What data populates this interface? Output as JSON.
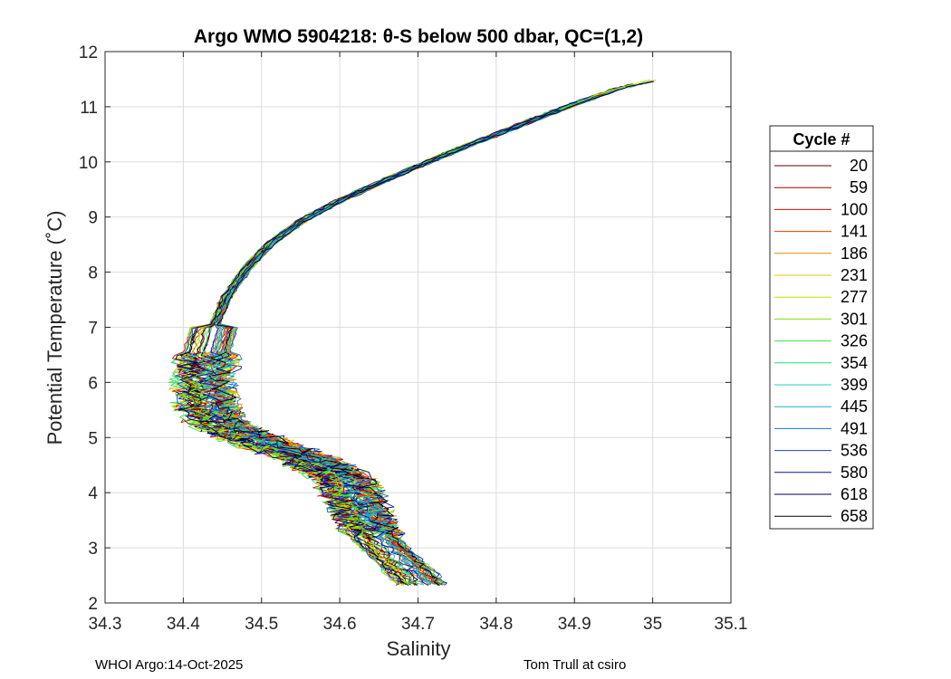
{
  "chart_data": {
    "type": "line",
    "title": "Argo WMO 5904218: θ-S below 500 dbar,  QC=(1,2)",
    "xlabel": "Salinity",
    "ylabel": "Potential Temperature (˚C)",
    "xlim": [
      34.3,
      35.1
    ],
    "ylim": [
      2,
      12
    ],
    "xticks": [
      "34.3",
      "34.4",
      "34.5",
      "34.6",
      "34.7",
      "34.8",
      "34.9",
      "35",
      "35.1"
    ],
    "yticks": [
      "2",
      "3",
      "4",
      "5",
      "6",
      "7",
      "8",
      "9",
      "10",
      "11",
      "12"
    ],
    "grid": true,
    "legend": {
      "title": "Cycle #",
      "placement": "outside-right",
      "entries": [
        {
          "label": "20",
          "color": "#5a0000"
        },
        {
          "label": "59",
          "color": "#a50000"
        },
        {
          "label": "100",
          "color": "#e10000"
        },
        {
          "label": "141",
          "color": "#e83a00"
        },
        {
          "label": "186",
          "color": "#ec8a00"
        },
        {
          "label": "231",
          "color": "#e8c800"
        },
        {
          "label": "277",
          "color": "#c8e000"
        },
        {
          "label": "301",
          "color": "#7fe000"
        },
        {
          "label": "326",
          "color": "#3fe03f"
        },
        {
          "label": "354",
          "color": "#1fe07f"
        },
        {
          "label": "399",
          "color": "#1fd0b0"
        },
        {
          "label": "445",
          "color": "#1fa8d0"
        },
        {
          "label": "491",
          "color": "#1f6fd0"
        },
        {
          "label": "536",
          "color": "#1f3fe0"
        },
        {
          "label": "580",
          "color": "#1010a0"
        },
        {
          "label": "618",
          "color": "#000040"
        },
        {
          "label": "658",
          "color": "#000000"
        }
      ]
    },
    "mean_profile": [
      {
        "s": 35.01,
        "t": 11.52
      },
      {
        "s": 34.95,
        "t": 11.3
      },
      {
        "s": 34.9,
        "t": 11.05
      },
      {
        "s": 34.85,
        "t": 10.78
      },
      {
        "s": 34.8,
        "t": 10.5
      },
      {
        "s": 34.75,
        "t": 10.22
      },
      {
        "s": 34.7,
        "t": 9.92
      },
      {
        "s": 34.65,
        "t": 9.62
      },
      {
        "s": 34.6,
        "t": 9.3
      },
      {
        "s": 34.55,
        "t": 8.92
      },
      {
        "s": 34.51,
        "t": 8.5
      },
      {
        "s": 34.48,
        "t": 8.05
      },
      {
        "s": 34.455,
        "t": 7.55
      },
      {
        "s": 34.44,
        "t": 7.05
      },
      {
        "s": 34.43,
        "t": 6.55
      },
      {
        "s": 34.425,
        "t": 6.05
      },
      {
        "s": 34.43,
        "t": 5.55
      },
      {
        "s": 34.45,
        "t": 5.2
      },
      {
        "s": 34.5,
        "t": 4.9
      },
      {
        "s": 34.56,
        "t": 4.6
      },
      {
        "s": 34.6,
        "t": 4.3
      },
      {
        "s": 34.62,
        "t": 3.9
      },
      {
        "s": 34.63,
        "t": 3.5
      },
      {
        "s": 34.65,
        "t": 3.1
      },
      {
        "s": 34.68,
        "t": 2.7
      },
      {
        "s": 34.705,
        "t": 2.33
      }
    ]
  },
  "footer": {
    "left": "WHOI Argo:14-Oct-2025",
    "right": "Tom Trull at csiro"
  }
}
